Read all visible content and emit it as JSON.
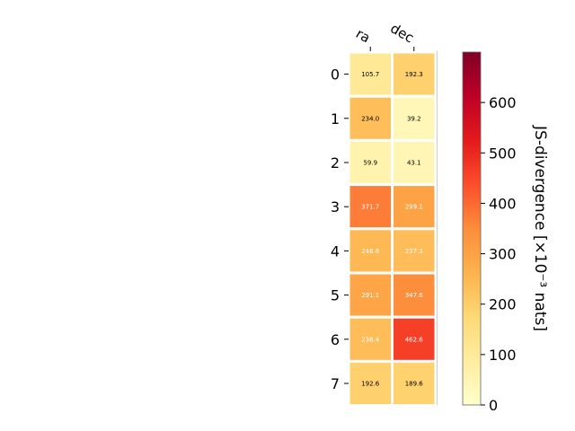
{
  "chart_data": {
    "type": "heatmap",
    "columns": [
      "ra",
      "dec"
    ],
    "rows": [
      "0",
      "1",
      "2",
      "3",
      "4",
      "5",
      "6",
      "7"
    ],
    "values": [
      [
        105.7,
        192.3
      ],
      [
        234.0,
        39.2
      ],
      [
        59.9,
        43.1
      ],
      [
        371.7,
        299.1
      ],
      [
        246.8,
        237.3
      ],
      [
        291.1,
        347.6
      ],
      [
        238.4,
        462.6
      ],
      [
        192.6,
        189.6
      ]
    ],
    "value_labels": [
      [
        "105.7",
        "192.3"
      ],
      [
        "234.0",
        "39.2"
      ],
      [
        "59.9",
        "43.1"
      ],
      [
        "371.7",
        "299.1"
      ],
      [
        "246.8",
        "237.3"
      ],
      [
        "291.1",
        "347.6"
      ],
      [
        "238.4",
        "462.6"
      ],
      [
        "192.6",
        "189.6"
      ]
    ],
    "colorbar": {
      "label": "JS-divergence [×10⁻³ nats]",
      "min": 0,
      "max": 700,
      "ticks": [
        0,
        100,
        200,
        300,
        400,
        500,
        600
      ],
      "colormap": "YlOrRd"
    },
    "colormap_stops": [
      "#ffffcc",
      "#ffeda0",
      "#fed976",
      "#feb24c",
      "#fd8d3c",
      "#fc4e2a",
      "#e31a1c",
      "#bd0026",
      "#800026"
    ],
    "cell_border_color": "#ffffff"
  }
}
